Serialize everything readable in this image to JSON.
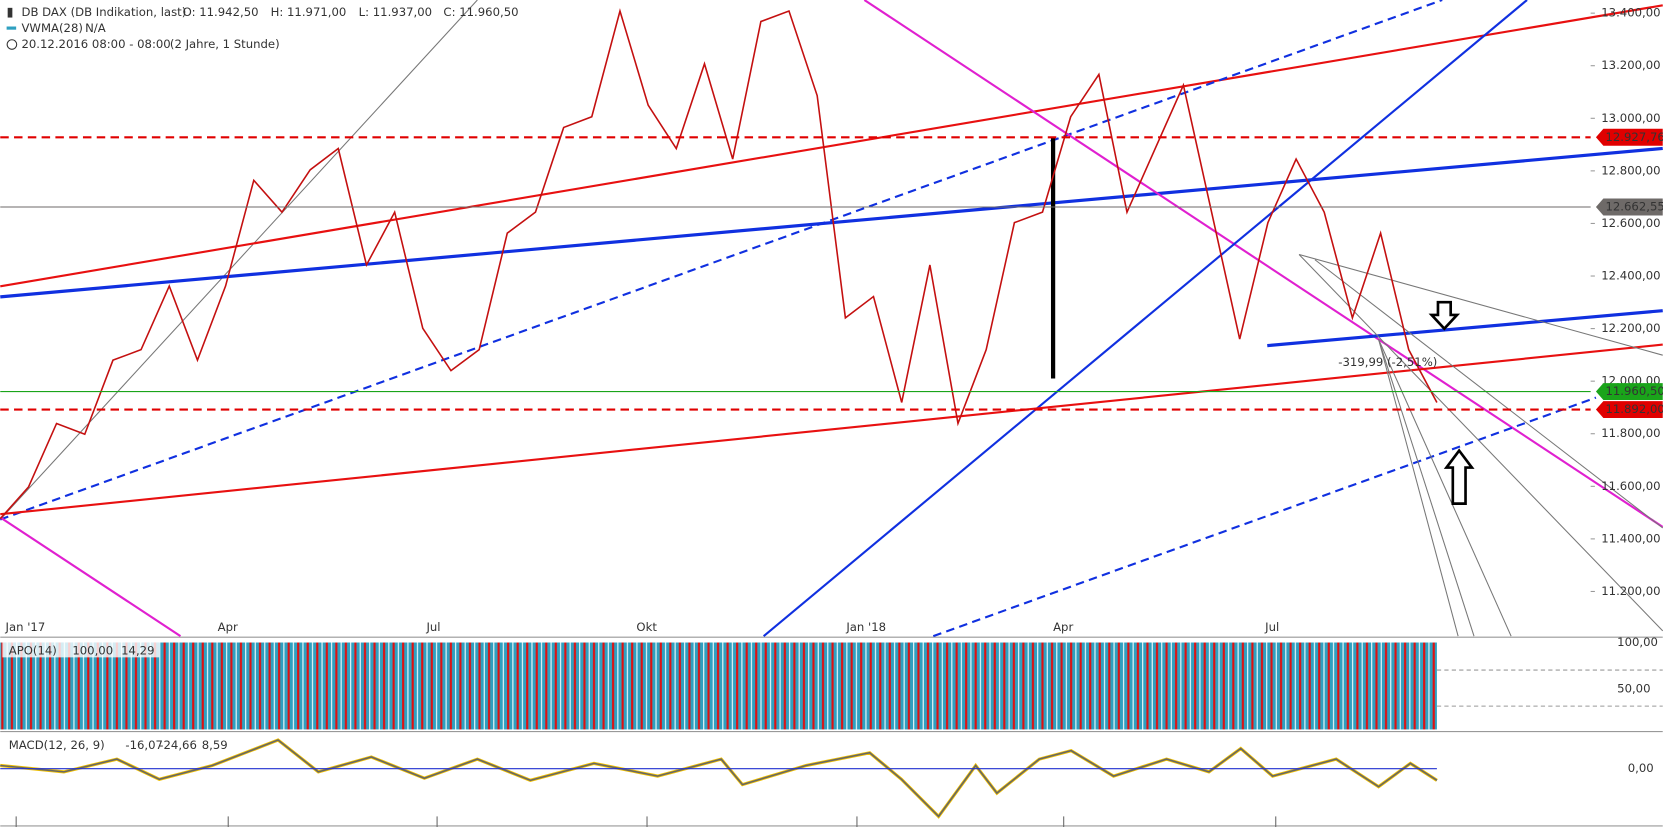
{
  "header": {
    "symbol": "DB DAX (DB Indikation, last)",
    "ohlc": [
      "O: 11.942,50",
      "H: 11.971,00",
      "L: 11.937,00",
      "C: 11.960,50"
    ],
    "indicator": "VWMA(28)",
    "indicator_value": "N/A",
    "period": "20.12.2016 08:00 - 08:00",
    "range": "(2 Jahre, 1 Stunde)"
  },
  "chart_data": [
    {
      "type": "line",
      "series": [
        {
          "color": "#c41010",
          "values": [
            11477,
            11597,
            11839,
            11798,
            12080,
            12120,
            12362,
            12080,
            12362,
            12764,
            12643,
            12804,
            12885,
            12442,
            12643,
            12201,
            12040,
            12120,
            12563,
            12643,
            12965,
            13006,
            13408,
            13050,
            12885,
            13207,
            12845,
            13368,
            13408,
            13086,
            12241,
            12322,
            11919,
            12442,
            11839,
            12120,
            12603,
            12643,
            13006,
            13167,
            12643,
            12885,
            13126,
            12643,
            12160,
            12603,
            12845,
            12643,
            12241,
            12563,
            12120,
            11919
          ]
        }
      ],
      "ylim": [
        11030,
        13450
      ],
      "yticks": [
        {
          "value": 13400,
          "label": "13.400,00"
        },
        {
          "value": 13200,
          "label": "13.200,00"
        },
        {
          "value": 13000,
          "label": "13.000,00"
        },
        {
          "value": 12800,
          "label": "12.800,00"
        },
        {
          "value": 12600,
          "label": "12.600,00"
        },
        {
          "value": 12400,
          "label": "12.400,00"
        },
        {
          "value": 12200,
          "label": "12.200,00"
        },
        {
          "value": 12000,
          "label": "12.000,00"
        },
        {
          "value": 11800,
          "label": "11.800,00"
        },
        {
          "value": 11600,
          "label": "11.600,00"
        },
        {
          "value": 11400,
          "label": "11.400,00"
        },
        {
          "value": 11200,
          "label": "11.200,00"
        }
      ],
      "x_labels": [
        "Jan '17",
        "Apr",
        "Jul",
        "Okt",
        "Jan '18",
        "Apr",
        "Jul"
      ],
      "levels": [
        {
          "value": 12927.76,
          "label": "12.927,76",
          "color": "#e00000",
          "dashed": true
        },
        {
          "value": 12662.55,
          "label": "12.662,55",
          "color": "#6e6a68",
          "dashed": false
        },
        {
          "value": 11960.5,
          "label": "11.960,50",
          "color": "#1aa41a",
          "dashed": false
        },
        {
          "value": 11892,
          "label": "11.892,00",
          "color": "#e00000",
          "dashed": true
        }
      ],
      "annotation": "-319,99 (-2,51%)"
    },
    {
      "type": "oscillator",
      "legend": [
        "APO(14)",
        "100,00",
        "14,29"
      ],
      "ylim": [
        0,
        100
      ],
      "yticks": [
        {
          "value": 100,
          "label": "100,00"
        },
        {
          "value": 50,
          "label": "50,00"
        }
      ]
    },
    {
      "type": "macd",
      "legend": [
        "MACD(12, 26, 9)",
        "-16,07",
        "-24,66",
        "8,59"
      ],
      "yticks": [
        {
          "value": 0,
          "label": "0,00"
        }
      ]
    }
  ]
}
